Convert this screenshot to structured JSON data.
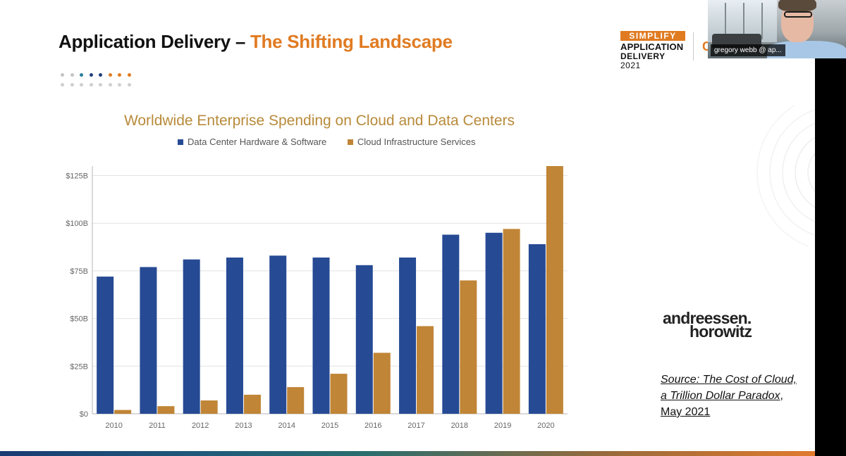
{
  "slide": {
    "title_main": "Application Delivery – ",
    "title_accent": "The Shifting Landscape",
    "dot_colors": [
      "#c4c4c4",
      "#c4c4c4",
      "#2a7f9e",
      "#1f3f7a",
      "#1f3f7a",
      "#e07b22",
      "#e07b22",
      "#e07b22"
    ]
  },
  "brand": {
    "line1": "SIMPLIFY",
    "line2": "APPLICATION",
    "line3": "DELIVERY",
    "year": "2021",
    "partial": "C"
  },
  "video": {
    "participant_label": "gregory webb @ ap..."
  },
  "logo": {
    "line1": "andreessen.",
    "line2": "horowitz"
  },
  "source": {
    "italic_text": "Source: The Cost of Cloud, a Trillion Dollar Paradox",
    "suffix": ", May 2021"
  },
  "chart_data": {
    "type": "bar",
    "title": "Worldwide Enterprise Spending on Cloud and Data Centers",
    "categories": [
      "2010",
      "2011",
      "2012",
      "2013",
      "2014",
      "2015",
      "2016",
      "2017",
      "2018",
      "2019",
      "2020"
    ],
    "series": [
      {
        "name": "Data Center Hardware & Software",
        "color": "#264a94",
        "values": [
          72,
          77,
          81,
          82,
          83,
          82,
          78,
          82,
          94,
          95,
          89
        ]
      },
      {
        "name": "Cloud Infrastructure Services",
        "color": "#c08536",
        "values": [
          2,
          4,
          7,
          10,
          14,
          21,
          32,
          46,
          70,
          97,
          130
        ]
      }
    ],
    "y_ticks": [
      0,
      25,
      50,
      75,
      100,
      125
    ],
    "y_tick_labels": [
      "$0",
      "$25B",
      "$50B",
      "$75B",
      "$100B",
      "$125B"
    ],
    "ylim": [
      0,
      130
    ],
    "grid": true,
    "legend_position": "top"
  }
}
